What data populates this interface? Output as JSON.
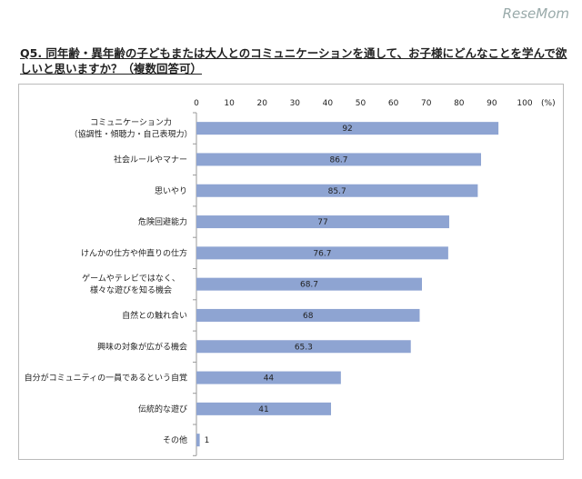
{
  "logo": "ReseMom",
  "title": "Q5. 同年齢・異年齢の子どもまたは大人とのコミュニケーションを通して、お子様にどんなことを学んで欲しいと思いますか？（複数回答可）",
  "chart_data": {
    "type": "bar",
    "orientation": "horizontal",
    "title": "Q5. 同年齢・異年齢の子どもまたは大人とのコミュニケーションを通して、お子様にどんなことを学んで欲しいと思いますか？（複数回答可）",
    "unit": "(%)",
    "xlim": [
      0,
      100
    ],
    "ticks": [
      0,
      10,
      20,
      30,
      40,
      50,
      60,
      70,
      80,
      90,
      100
    ],
    "categories": [
      [
        "コミュニケーション力",
        "（協調性・傾聴力・自己表現力）"
      ],
      [
        "社会ルールやマナー"
      ],
      [
        "思いやり"
      ],
      [
        "危険回避能力"
      ],
      [
        "けんかの仕方や仲直りの仕方"
      ],
      [
        "ゲームやテレビではなく、",
        "様々な遊びを知る機会"
      ],
      [
        "自然との触れ合い"
      ],
      [
        "興味の対象が広がる機会"
      ],
      [
        "自分がコミュニティの一員であるという自覚"
      ],
      [
        "伝統的な遊び"
      ],
      [
        "その他"
      ]
    ],
    "values": [
      92,
      86.7,
      85.7,
      77,
      76.7,
      68.7,
      68,
      65.3,
      44,
      41,
      1
    ],
    "bar_color": "#8ea4d2",
    "grid": false
  }
}
